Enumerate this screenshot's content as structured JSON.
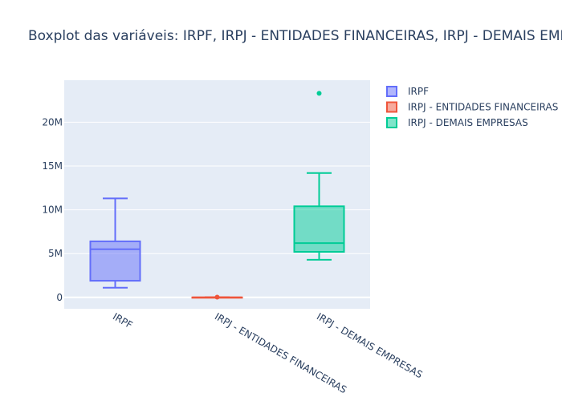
{
  "chart_data": {
    "type": "box",
    "title": "Boxplot das variáveis: IRPF, IRPJ - ENTIDADES FINANCEIRAS, IRPJ - DEMAIS EMPRESAS",
    "xlabel": "",
    "ylabel": "",
    "categories": [
      "IRPF",
      "IRPJ - ENTIDADES FINANCEIRAS",
      "IRPJ - DEMAIS EMPRESAS"
    ],
    "ylim": [
      -1300000,
      24800000
    ],
    "yticks": [
      0,
      5000000,
      10000000,
      15000000,
      20000000
    ],
    "ytick_labels": [
      "0",
      "5M",
      "10M",
      "15M",
      "20M"
    ],
    "grid": true,
    "legend_position": "top-right",
    "series": [
      {
        "name": "IRPF",
        "color": "#636efa",
        "min": 1100000,
        "q1": 1900000,
        "median": 5500000,
        "q3": 6400000,
        "max": 11300000,
        "outliers": []
      },
      {
        "name": "IRPJ - ENTIDADES FINANCEIRAS",
        "color": "#ef553b",
        "min": 0,
        "q1": 0,
        "median": 0,
        "q3": 0,
        "max": 0,
        "outliers": [
          30000
        ]
      },
      {
        "name": "IRPJ - DEMAIS EMPRESAS",
        "color": "#00cc96",
        "min": 4300000,
        "q1": 5200000,
        "median": 6200000,
        "q3": 10400000,
        "max": 14200000,
        "outliers": [
          23300000
        ]
      }
    ]
  }
}
